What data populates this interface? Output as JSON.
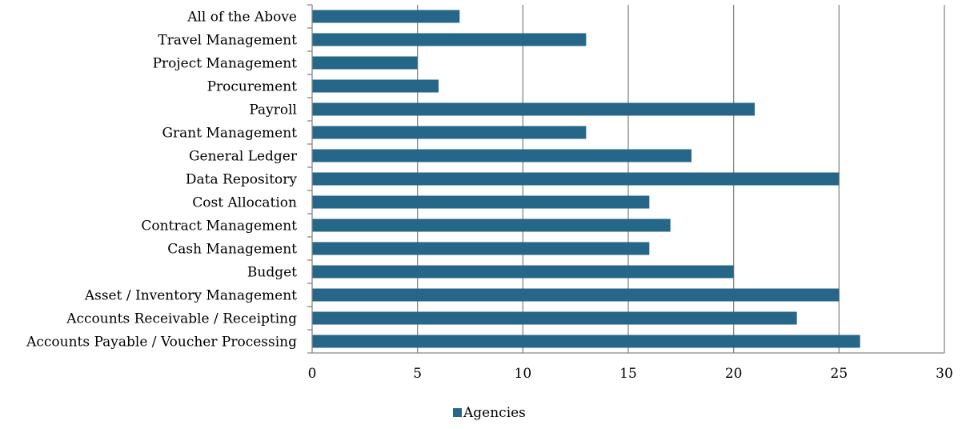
{
  "chart_data": {
    "type": "bar",
    "orientation": "horizontal",
    "categories": [
      "All of the Above",
      "Travel Management",
      "Project Management",
      "Procurement",
      "Payroll",
      "Grant Management",
      "General Ledger",
      "Data Repository",
      "Cost Allocation",
      "Contract Management",
      "Cash Management",
      "Budget",
      "Asset / Inventory Management",
      "Accounts Receivable / Receipting",
      "Accounts Payable / Voucher Processing"
    ],
    "series": [
      {
        "name": "Agencies",
        "color": "#256689",
        "values": [
          7,
          13,
          5,
          6,
          21,
          13,
          18,
          25,
          16,
          17,
          16,
          20,
          25,
          23,
          26
        ]
      }
    ],
    "xlim": [
      0,
      30
    ],
    "xticks": [
      "0",
      "5",
      "10",
      "15",
      "20",
      "25",
      "30"
    ],
    "grid": "vertical",
    "legend_position": "bottom"
  }
}
